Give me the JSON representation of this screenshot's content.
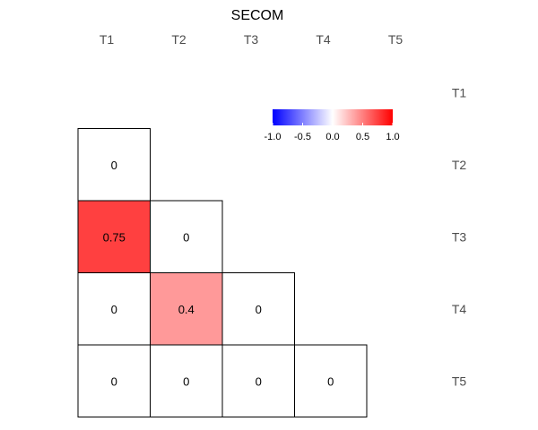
{
  "chart_data": {
    "type": "heatmap",
    "title": "SECOM",
    "x_labels": [
      "T1",
      "T2",
      "T3",
      "T4",
      "T5"
    ],
    "y_labels": [
      "T1",
      "T2",
      "T3",
      "T4",
      "T5"
    ],
    "layout": "lower-triangle",
    "cells": [
      {
        "row": "T2",
        "col": "T1",
        "value": 0,
        "label": "0"
      },
      {
        "row": "T3",
        "col": "T1",
        "value": 0.75,
        "label": "0.75"
      },
      {
        "row": "T3",
        "col": "T2",
        "value": 0,
        "label": "0"
      },
      {
        "row": "T4",
        "col": "T1",
        "value": 0,
        "label": "0"
      },
      {
        "row": "T4",
        "col": "T2",
        "value": 0.4,
        "label": "0.4"
      },
      {
        "row": "T4",
        "col": "T3",
        "value": 0,
        "label": "0"
      },
      {
        "row": "T5",
        "col": "T1",
        "value": 0,
        "label": "0"
      },
      {
        "row": "T5",
        "col": "T2",
        "value": 0,
        "label": "0"
      },
      {
        "row": "T5",
        "col": "T3",
        "value": 0,
        "label": "0"
      },
      {
        "row": "T5",
        "col": "T4",
        "value": 0,
        "label": "0"
      }
    ],
    "color_scale": {
      "range": [
        -1.0,
        1.0
      ],
      "low_color": "#0000ff",
      "mid_color": "#ffffff",
      "high_color": "#ff0000",
      "tick_labels": [
        "-1.0",
        "-0.5",
        "0.0",
        "0.5",
        "1.0"
      ],
      "tick_values": [
        -1.0,
        -0.5,
        0.0,
        0.5,
        1.0
      ]
    },
    "legend_position": "top-right"
  }
}
